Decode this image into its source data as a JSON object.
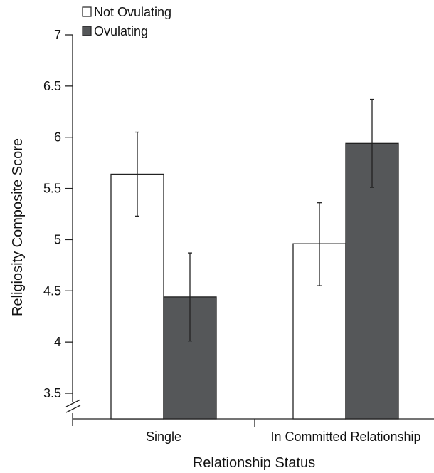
{
  "chart_data": {
    "type": "bar",
    "xlabel": "Relationship Status",
    "ylabel": "Religiosity Composite Score",
    "categories": [
      "Single",
      "In Committed Relationship"
    ],
    "series": [
      {
        "name": "Not Ovulating",
        "color": "#ffffff",
        "values": [
          5.64,
          4.96
        ],
        "error_low": [
          5.23,
          4.55
        ],
        "error_high": [
          6.05,
          5.36
        ]
      },
      {
        "name": "Ovulating",
        "color": "#555759",
        "values": [
          4.44,
          5.94
        ],
        "error_low": [
          4.01,
          5.51
        ],
        "error_high": [
          4.87,
          6.37
        ]
      }
    ],
    "ylim": [
      3.4,
      7
    ],
    "yticks": [
      "3.5",
      "4",
      "4.5",
      "5",
      "5.5",
      "6",
      "6.5",
      "7"
    ],
    "axis_break": true,
    "legend_position": "top-left",
    "grid": false
  }
}
